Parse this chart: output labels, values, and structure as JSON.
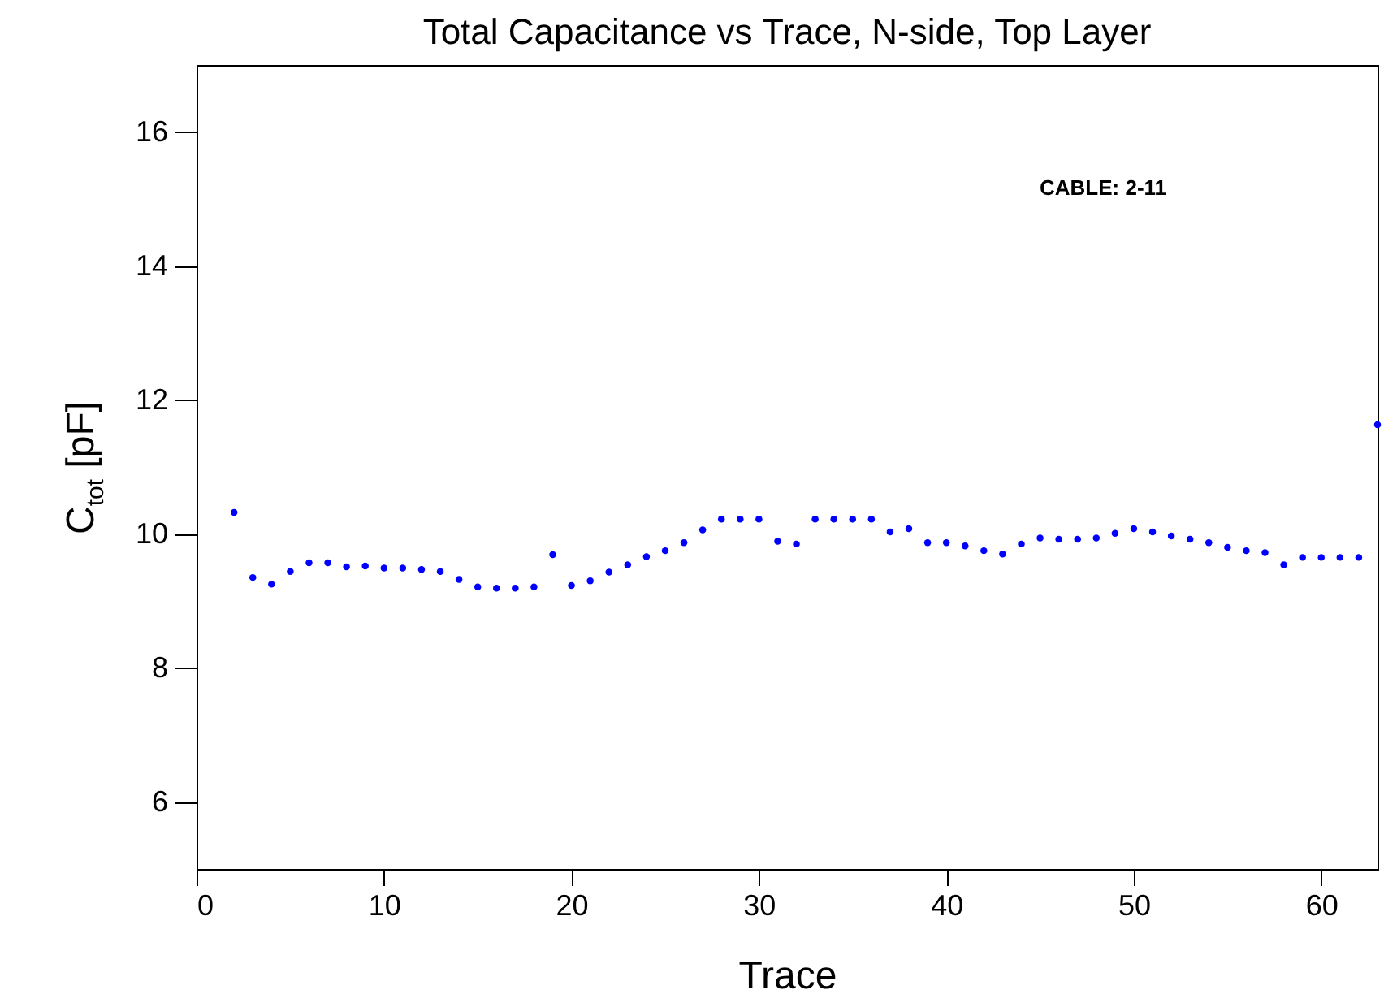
{
  "chart_data": {
    "type": "scatter",
    "title": "Total Capacitance vs Trace, N-side, Top Layer",
    "xlabel": "Trace",
    "ylabel": "C$_{tot}$ [pF]",
    "annotations": [
      "CABLE: 2-11"
    ],
    "x": [
      2,
      3,
      4,
      5,
      6,
      7,
      8,
      9,
      10,
      11,
      12,
      13,
      14,
      15,
      16,
      17,
      18,
      19,
      20,
      21,
      22,
      23,
      24,
      25,
      26,
      27,
      28,
      29,
      30,
      31,
      32,
      33,
      34,
      35,
      36,
      37,
      38,
      39,
      40,
      41,
      42,
      43,
      44,
      45,
      46,
      47,
      48,
      49,
      50,
      51,
      52,
      53,
      54,
      55,
      56,
      57,
      58,
      59,
      60,
      61,
      62,
      63
    ],
    "series": [
      {
        "color": "#0000ff",
        "values": [
          10.32,
          9.35,
          9.25,
          9.44,
          9.57,
          9.57,
          9.51,
          9.52,
          9.49,
          9.49,
          9.47,
          9.44,
          9.32,
          9.21,
          9.19,
          9.19,
          9.21,
          9.69,
          9.23,
          9.3,
          9.43,
          9.54,
          9.66,
          9.75,
          9.87,
          10.06,
          10.22,
          10.22,
          10.22,
          9.89,
          9.85,
          10.22,
          10.22,
          10.22,
          10.22,
          10.03,
          10.08,
          9.87,
          9.87,
          9.82,
          9.75,
          9.7,
          9.85,
          9.94,
          9.92,
          9.92,
          9.94,
          10.01,
          10.08,
          10.03,
          9.97,
          9.92,
          9.87,
          9.8,
          9.75,
          9.72,
          9.54,
          9.65,
          9.65,
          9.65,
          9.65,
          11.63
        ]
      }
    ],
    "xlim": [
      0,
      63
    ],
    "ylim": [
      5,
      17
    ],
    "xticks": [
      0,
      10,
      20,
      30,
      40,
      50,
      60
    ],
    "yticks": [
      6,
      8,
      10,
      12,
      14,
      16
    ],
    "grid": false,
    "marker": "circle"
  }
}
